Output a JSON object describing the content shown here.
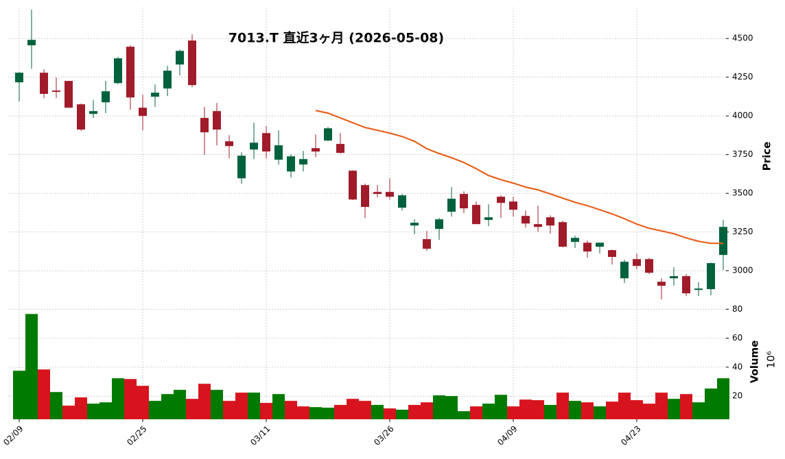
{
  "chart_data": {
    "type": "candlestick",
    "title": "7013.T  直近3ヶ月 (2026-05-08)",
    "categories": [
      "02/09",
      null,
      null,
      null,
      null,
      null,
      null,
      null,
      null,
      null,
      "02/25",
      null,
      null,
      null,
      null,
      null,
      null,
      null,
      null,
      null,
      "03/11",
      null,
      null,
      null,
      null,
      null,
      null,
      null,
      null,
      null,
      "03/26",
      null,
      null,
      null,
      null,
      null,
      null,
      null,
      null,
      null,
      "04/09",
      null,
      null,
      null,
      null,
      null,
      null,
      null,
      null,
      null,
      "04/23",
      null,
      null,
      null,
      null,
      null,
      null,
      null
    ],
    "open": [
      4217,
      4456,
      4279,
      4164,
      4226,
      4075,
      4013,
      4088,
      4212,
      4447,
      4053,
      4124,
      4177,
      4332,
      4487,
      3987,
      4031,
      3836,
      3597,
      3783,
      3889,
      3717,
      3641,
      3686,
      3792,
      3841,
      3819,
      3646,
      3553,
      3509,
      3509,
      3407,
      3292,
      3204,
      3270,
      3381,
      3496,
      3425,
      3328,
      3478,
      3447,
      3354,
      3301,
      3345,
      3314,
      3186,
      3181,
      3155,
      3133,
      2951,
      3075,
      3075,
      2929,
      2951,
      2965,
      2876,
      2881,
      3102
    ],
    "high": [
      4283,
      4686,
      4301,
      4248,
      4226,
      4080,
      4102,
      4226,
      4381,
      4456,
      4137,
      4204,
      4323,
      4429,
      4527,
      4058,
      4084,
      3876,
      3765,
      3956,
      3934,
      3907,
      3752,
      3774,
      3881,
      3929,
      3889,
      3650,
      3562,
      3553,
      3597,
      3496,
      3332,
      3257,
      3341,
      3540,
      3513,
      3447,
      3429,
      3487,
      3478,
      3389,
      3420,
      3358,
      3323,
      3226,
      3195,
      3181,
      3137,
      3071,
      3111,
      3084,
      2951,
      3022,
      2978,
      2925,
      3053,
      3328
    ],
    "low": [
      4093,
      4305,
      4115,
      4115,
      4053,
      3903,
      3987,
      4018,
      4204,
      4040,
      3907,
      4058,
      4128,
      4261,
      4186,
      3748,
      3810,
      3726,
      3562,
      3721,
      3726,
      3686,
      3602,
      3641,
      3734,
      3836,
      3757,
      3456,
      3341,
      3473,
      3460,
      3389,
      3235,
      3128,
      3199,
      3350,
      3372,
      3301,
      3288,
      3341,
      3350,
      3279,
      3252,
      3239,
      3150,
      3146,
      3084,
      3111,
      3040,
      2920,
      3009,
      2978,
      2814,
      2903,
      2836,
      2836,
      2841,
      3004
    ],
    "close": [
      4279,
      4491,
      4142,
      4155,
      4053,
      3912,
      4031,
      4159,
      4372,
      4119,
      4000,
      4150,
      4292,
      4420,
      4199,
      3894,
      3912,
      3805,
      3743,
      3827,
      3770,
      3810,
      3739,
      3721,
      3770,
      3920,
      3761,
      3460,
      3412,
      3496,
      3478,
      3487,
      3310,
      3142,
      3332,
      3465,
      3403,
      3301,
      3345,
      3438,
      3394,
      3305,
      3283,
      3292,
      3155,
      3212,
      3124,
      3181,
      3089,
      3058,
      3031,
      2987,
      2903,
      2965,
      2854,
      2885,
      3049,
      3283
    ],
    "up_color": "#00623d",
    "down_color": "#a01c2a",
    "moving_average": {
      "color": "#e8601c",
      "values": [
        null,
        null,
        null,
        null,
        null,
        null,
        null,
        null,
        null,
        null,
        null,
        null,
        null,
        null,
        null,
        null,
        null,
        null,
        null,
        null,
        null,
        null,
        null,
        null,
        4035,
        4018,
        3987,
        3956,
        3925,
        3907,
        3889,
        3867,
        3836,
        3788,
        3757,
        3730,
        3699,
        3659,
        3615,
        3588,
        3566,
        3540,
        3522,
        3496,
        3469,
        3442,
        3420,
        3394,
        3367,
        3336,
        3301,
        3274,
        3257,
        3239,
        3212,
        3190,
        3177,
        3177
      ]
    },
    "ylim": [
      2806,
      4700
    ],
    "yticks": [
      3000,
      3250,
      3500,
      3750,
      4000,
      4250,
      4500
    ],
    "ylabel": "Price",
    "grid": true,
    "volume": {
      "label": "Volume",
      "scale_label": "10⁶",
      "ylim": [
        4,
        83
      ],
      "yticks": [
        20,
        40,
        60,
        80
      ],
      "values": [
        37.5,
        76.7,
        38.4,
        22.8,
        13.4,
        19.1,
        14.8,
        15.7,
        32.3,
        31.8,
        27.1,
        16.7,
        21.4,
        24.3,
        18.1,
        28.5,
        24.3,
        16.7,
        22.4,
        22.4,
        15.3,
        21.4,
        16.7,
        12.9,
        12.4,
        12.0,
        13.9,
        18.1,
        16.7,
        13.9,
        11.5,
        10.6,
        13.9,
        15.7,
        20.5,
        20.0,
        9.6,
        12.9,
        14.8,
        20.9,
        12.9,
        17.6,
        17.2,
        13.9,
        22.4,
        16.7,
        15.7,
        12.9,
        16.2,
        22.4,
        17.2,
        14.8,
        22.4,
        18.1,
        21.4,
        15.7,
        25.2,
        32.3
      ],
      "colors": [
        "#007a00",
        "#007a00",
        "#d7141e",
        "#007a00",
        "#d7141e",
        "#d7141e",
        "#007a00",
        "#007a00",
        "#007a00",
        "#d7141e",
        "#d7141e",
        "#007a00",
        "#007a00",
        "#007a00",
        "#d7141e",
        "#d7141e",
        "#007a00",
        "#d7141e",
        "#d7141e",
        "#007a00",
        "#d7141e",
        "#007a00",
        "#d7141e",
        "#d7141e",
        "#007a00",
        "#007a00",
        "#d7141e",
        "#d7141e",
        "#d7141e",
        "#007a00",
        "#d7141e",
        "#007a00",
        "#d7141e",
        "#d7141e",
        "#007a00",
        "#007a00",
        "#007a00",
        "#d7141e",
        "#007a00",
        "#007a00",
        "#d7141e",
        "#d7141e",
        "#d7141e",
        "#007a00",
        "#d7141e",
        "#007a00",
        "#d7141e",
        "#007a00",
        "#d7141e",
        "#d7141e",
        "#d7141e",
        "#d7141e",
        "#d7141e",
        "#007a00",
        "#d7141e",
        "#007a00",
        "#007a00",
        "#007a00"
      ]
    }
  }
}
